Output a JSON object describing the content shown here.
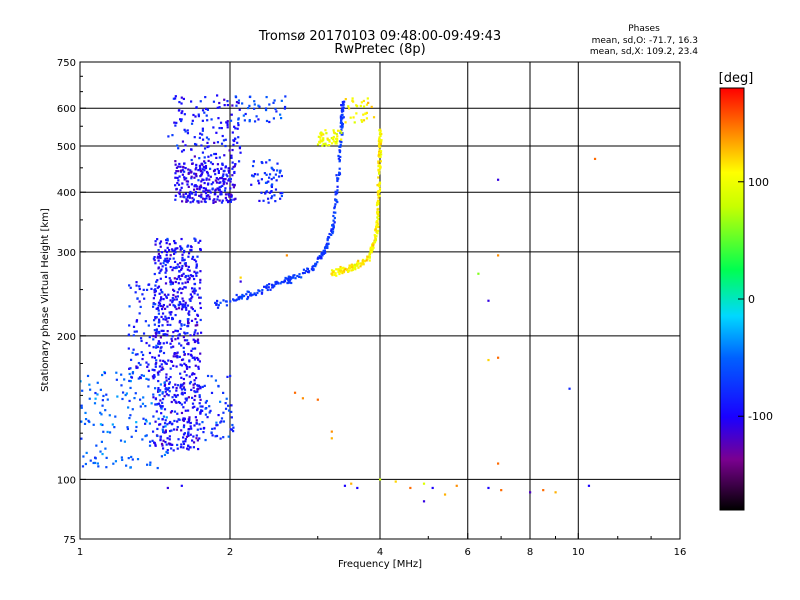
{
  "chart_data": {
    "type": "scatter",
    "title": "Tromsø 20170103 09:48:00-09:49:43",
    "subtitle": "RwPretec (8p)",
    "xlabel": "Frequency [MHz]",
    "ylabel": "Stationary phase Virtual Height [km]",
    "x_scale": "log",
    "y_scale": "log",
    "xlim": [
      1,
      16
    ],
    "ylim": [
      75,
      750
    ],
    "x_ticks": [
      1,
      2,
      4,
      6,
      8,
      10,
      16
    ],
    "x_tick_labels": [
      "1",
      "2",
      "4",
      "6",
      "8",
      "10",
      "16"
    ],
    "y_ticks": [
      75,
      100,
      200,
      300,
      400,
      500,
      600,
      750
    ],
    "y_tick_labels": [
      "75",
      "100",
      "200",
      "300",
      "400",
      "500",
      "600",
      "750"
    ],
    "x_grid": [
      2,
      4,
      6,
      8,
      10
    ],
    "y_grid": [
      100,
      200,
      300,
      400,
      500,
      600
    ],
    "grid": true,
    "phases_box": {
      "title": "Phases",
      "line_o": "mean, sd,O: -71.7, 16.3",
      "line_x": "mean, sd,X: 109.2, 23.4"
    },
    "colorbar": {
      "label": "[deg]",
      "range": [
        -180,
        180
      ],
      "ticks": [
        100,
        0,
        -100
      ],
      "tick_labels": [
        "100",
        "0",
        "-100"
      ]
    },
    "series": [
      {
        "mode": "O",
        "phase_mean": -71.7,
        "phase_sd": 16.3,
        "trace": {
          "x": [
            1.85,
            2.0,
            2.3,
            2.6,
            2.9,
            3.1,
            3.22,
            3.28,
            3.32,
            3.35,
            3.37
          ],
          "y": [
            232,
            238,
            247,
            262,
            275,
            300,
            340,
            400,
            480,
            560,
            620
          ]
        }
      },
      {
        "mode": "X",
        "phase_mean": 109.2,
        "phase_sd": 23.4,
        "trace": {
          "x": [
            3.2,
            3.4,
            3.6,
            3.8,
            3.92,
            3.97,
            3.99,
            4.0
          ],
          "y": [
            272,
            275,
            282,
            293,
            320,
            380,
            460,
            540
          ]
        }
      }
    ]
  }
}
